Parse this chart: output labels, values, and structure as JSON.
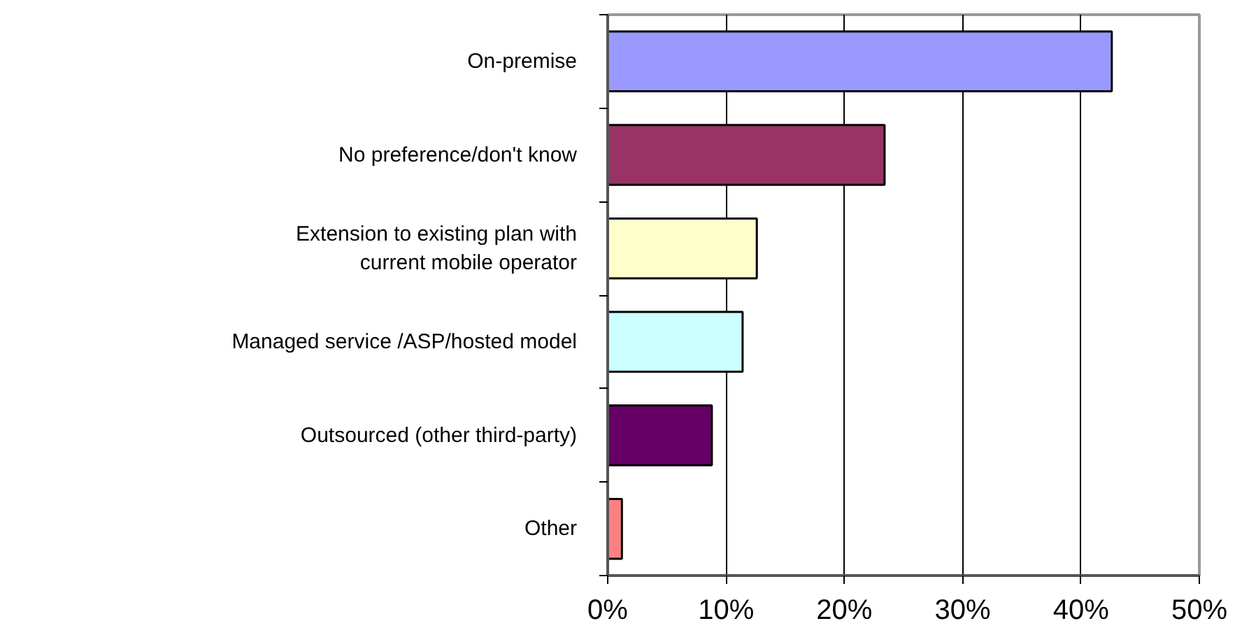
{
  "chart_data": {
    "type": "bar",
    "orientation": "horizontal",
    "categories": [
      "On-premise",
      "No preference/don't know",
      "Extension to existing plan with\ncurrent mobile operator",
      "Managed service /ASP/hosted model",
      "Outsourced (other third-party)",
      "Other"
    ],
    "values": [
      42.6,
      23.4,
      12.6,
      11.4,
      8.8,
      1.2
    ],
    "colors": [
      "#9999ff",
      "#993366",
      "#ffffcc",
      "#ccffff",
      "#660066",
      "#ff8080"
    ],
    "xlim": [
      0,
      50
    ],
    "xticks": [
      {
        "value": 0,
        "label": "0%"
      },
      {
        "value": 10,
        "label": "10%"
      },
      {
        "value": 20,
        "label": "20%"
      },
      {
        "value": 30,
        "label": "30%"
      },
      {
        "value": 40,
        "label": "40%"
      },
      {
        "value": 50,
        "label": "50%"
      }
    ],
    "grid": "x"
  }
}
